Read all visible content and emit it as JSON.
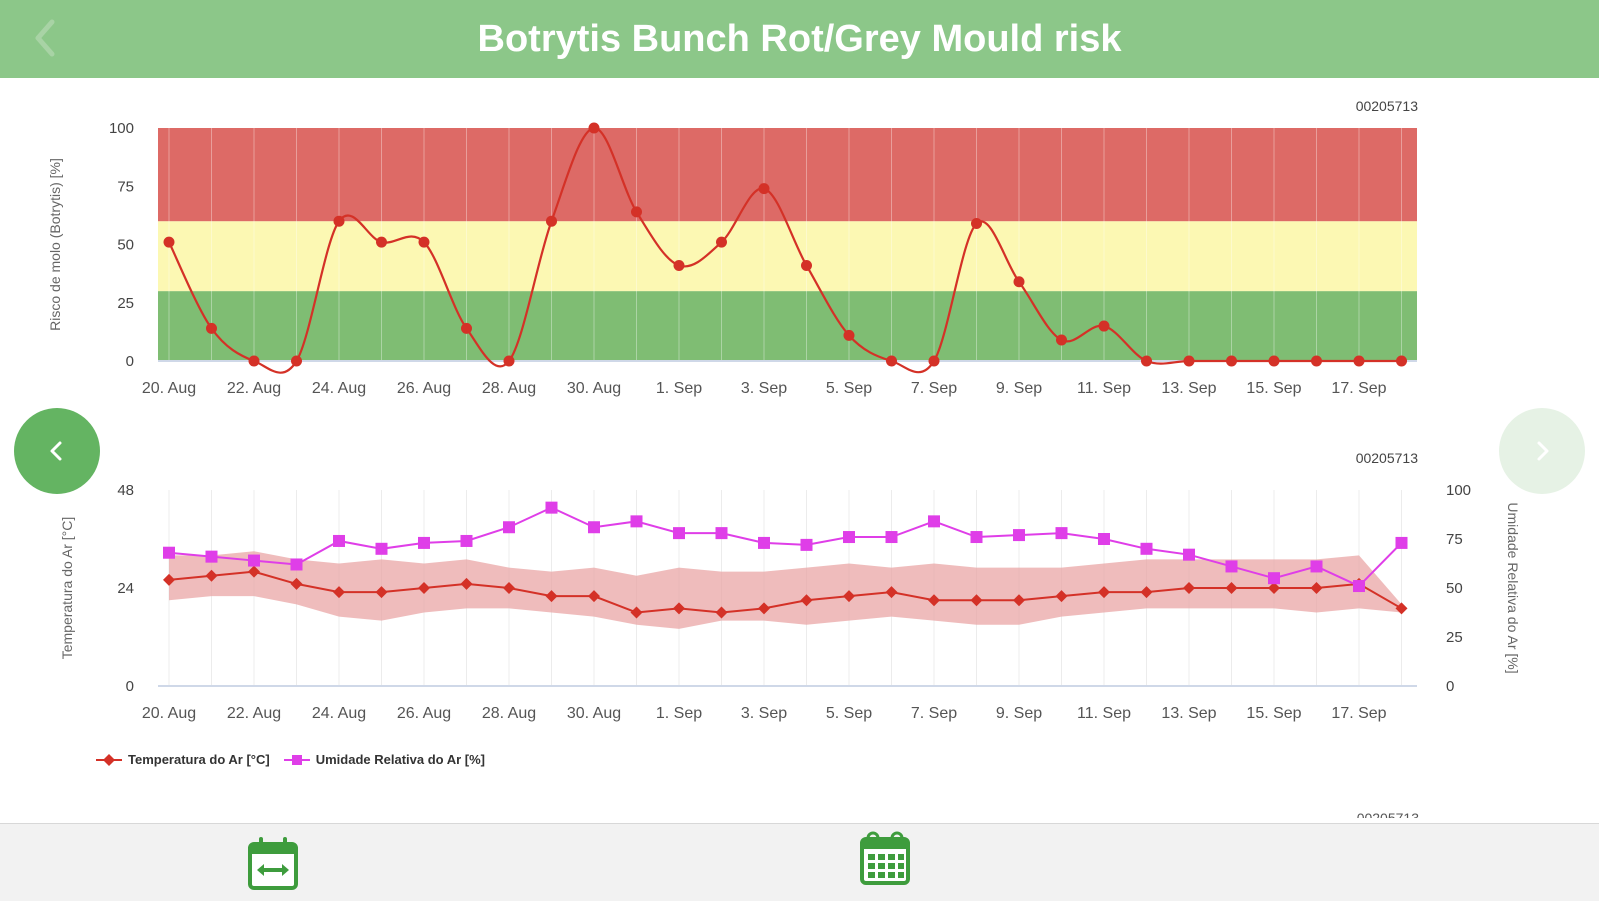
{
  "header": {
    "title": "Botrytis Bunch Rot/Grey Mould risk"
  },
  "icons": {
    "back": "chevron-left-icon",
    "prev": "chevron-left-icon",
    "next": "chevron-right-icon",
    "range": "calendar-range-icon",
    "calendar": "calendar-icon"
  },
  "colors": {
    "header": "#8cc789",
    "risk_high": "#dd6a66",
    "risk_medium": "#fcf8b3",
    "risk_low": "#7fbd73",
    "temperature": "#d43127",
    "humidity": "#df3ee8",
    "temp_band": "#e9a6a6"
  },
  "x_ticks": [
    "20. Aug",
    "22. Aug",
    "24. Aug",
    "26. Aug",
    "28. Aug",
    "30. Aug",
    "1. Sep",
    "3. Sep",
    "5. Sep",
    "7. Sep",
    "9. Sep",
    "11. Sep",
    "13. Sep",
    "15. Sep",
    "17. Sep"
  ],
  "chart_data": [
    {
      "type": "line",
      "station": "00205713",
      "ylabel": "Risco de molo (Botrytis) [%]",
      "ylim": [
        0,
        100
      ],
      "y_ticks": [
        "0",
        "25",
        "50",
        "75",
        "100"
      ],
      "bands": [
        {
          "name": "low",
          "from": 0,
          "to": 30
        },
        {
          "name": "medium",
          "from": 30,
          "to": 60
        },
        {
          "name": "high",
          "from": 60,
          "to": 100
        }
      ],
      "series": [
        {
          "values": [
            51,
            14,
            0,
            0,
            60,
            51,
            51,
            14,
            0,
            60,
            100,
            64,
            41,
            51,
            74,
            41,
            11,
            0,
            0,
            59,
            34,
            9,
            15,
            0,
            0,
            0,
            0,
            0,
            0,
            0
          ]
        }
      ]
    },
    {
      "type": "line",
      "station": "00205713",
      "ylabel": "Temperatura do Ar [°C]",
      "ylabel_right": "Umidade Relativa do Ar [%]",
      "ylim": [
        0,
        48
      ],
      "ylim_right": [
        0,
        100
      ],
      "y_ticks": [
        "0",
        "24",
        "48"
      ],
      "y_ticks_right": [
        "0",
        "25",
        "50",
        "75",
        "100"
      ],
      "series": [
        {
          "name": "Temperatura do Ar [°C]",
          "axis": "left",
          "values": [
            26,
            27,
            28,
            25,
            23,
            23,
            24,
            25,
            24,
            22,
            22,
            18,
            19,
            18,
            19,
            21,
            22,
            23,
            21,
            21,
            21,
            22,
            23,
            23,
            24,
            24,
            24,
            24,
            25,
            19
          ],
          "band_upper": [
            32,
            32,
            33,
            31,
            30,
            31,
            30,
            31,
            29,
            28,
            29,
            27,
            29,
            28,
            28,
            29,
            30,
            29,
            30,
            29,
            29,
            29,
            30,
            31,
            31,
            31,
            31,
            31,
            32,
            20
          ],
          "band_lower": [
            21,
            22,
            22,
            20,
            17,
            16,
            18,
            19,
            19,
            18,
            17,
            15,
            14,
            16,
            16,
            15,
            16,
            17,
            16,
            15,
            15,
            17,
            18,
            19,
            19,
            19,
            19,
            18,
            19,
            18
          ]
        },
        {
          "name": "Umidade Relativa do Ar [%]",
          "axis": "right",
          "values": [
            68,
            66,
            64,
            62,
            74,
            70,
            73,
            74,
            81,
            91,
            81,
            84,
            78,
            78,
            73,
            72,
            76,
            76,
            84,
            76,
            77,
            78,
            75,
            70,
            67,
            61,
            55,
            61,
            51,
            73
          ]
        }
      ]
    }
  ],
  "station3": "00205713"
}
